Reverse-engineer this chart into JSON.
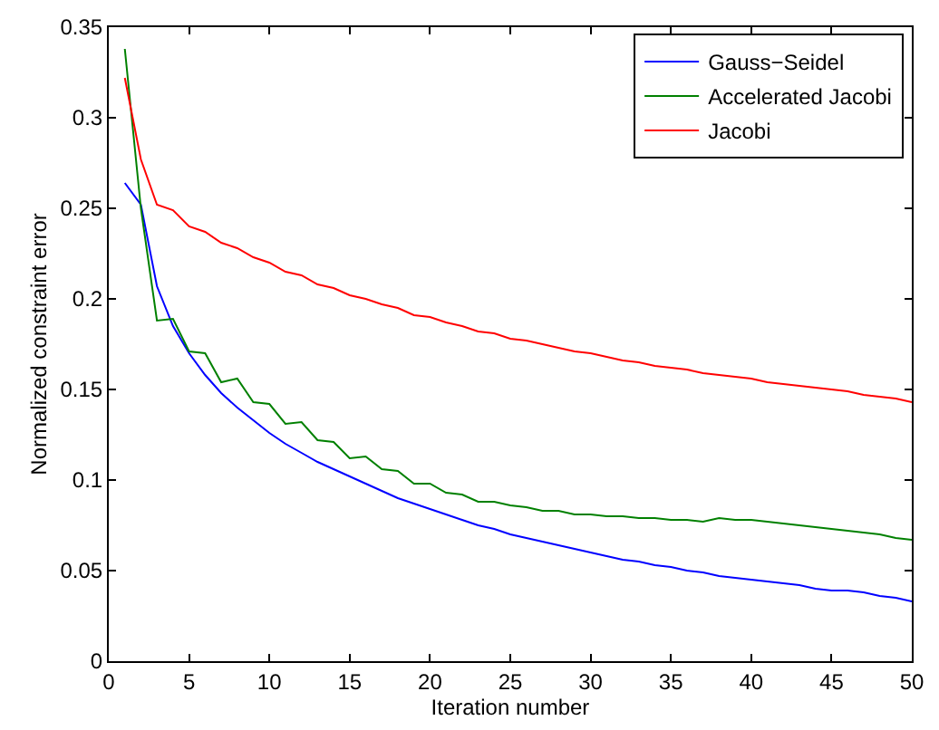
{
  "chart_data": {
    "type": "line",
    "xlabel": "Iteration number",
    "ylabel": "Normalized constraint error",
    "x": [
      1,
      2,
      3,
      4,
      5,
      6,
      7,
      8,
      9,
      10,
      11,
      12,
      13,
      14,
      15,
      16,
      17,
      18,
      19,
      20,
      21,
      22,
      23,
      24,
      25,
      26,
      27,
      28,
      29,
      30,
      31,
      32,
      33,
      34,
      35,
      36,
      37,
      38,
      39,
      40,
      41,
      42,
      43,
      44,
      45,
      46,
      47,
      48,
      49,
      50
    ],
    "series": [
      {
        "name": "Gauss−Seidel",
        "color": "#0000ff",
        "values": [
          0.264,
          0.252,
          0.207,
          0.185,
          0.17,
          0.158,
          0.148,
          0.14,
          0.133,
          0.126,
          0.12,
          0.115,
          0.11,
          0.106,
          0.102,
          0.098,
          0.094,
          0.09,
          0.087,
          0.084,
          0.081,
          0.078,
          0.075,
          0.073,
          0.07,
          0.068,
          0.066,
          0.064,
          0.062,
          0.06,
          0.058,
          0.056,
          0.055,
          0.053,
          0.052,
          0.05,
          0.049,
          0.047,
          0.046,
          0.045,
          0.044,
          0.043,
          0.042,
          0.04,
          0.039,
          0.039,
          0.038,
          0.036,
          0.035,
          0.033
        ]
      },
      {
        "name": "Accelerated Jacobi",
        "color": "#008000",
        "values": [
          0.338,
          0.25,
          0.188,
          0.189,
          0.171,
          0.17,
          0.154,
          0.156,
          0.143,
          0.142,
          0.131,
          0.132,
          0.122,
          0.121,
          0.112,
          0.113,
          0.106,
          0.105,
          0.098,
          0.098,
          0.093,
          0.092,
          0.088,
          0.088,
          0.086,
          0.085,
          0.083,
          0.083,
          0.081,
          0.081,
          0.08,
          0.08,
          0.079,
          0.079,
          0.078,
          0.078,
          0.077,
          0.079,
          0.078,
          0.078,
          0.077,
          0.076,
          0.075,
          0.074,
          0.073,
          0.072,
          0.071,
          0.07,
          0.068,
          0.067
        ]
      },
      {
        "name": "Jacobi",
        "color": "#ff0000",
        "values": [
          0.322,
          0.277,
          0.252,
          0.249,
          0.24,
          0.237,
          0.231,
          0.228,
          0.223,
          0.22,
          0.215,
          0.213,
          0.208,
          0.206,
          0.202,
          0.2,
          0.197,
          0.195,
          0.191,
          0.19,
          0.187,
          0.185,
          0.182,
          0.181,
          0.178,
          0.177,
          0.175,
          0.173,
          0.171,
          0.17,
          0.168,
          0.166,
          0.165,
          0.163,
          0.162,
          0.161,
          0.159,
          0.158,
          0.157,
          0.156,
          0.154,
          0.153,
          0.152,
          0.151,
          0.15,
          0.149,
          0.147,
          0.146,
          0.145,
          0.143
        ]
      }
    ],
    "xlim": [
      0,
      50
    ],
    "xticks": [
      0,
      5,
      10,
      15,
      20,
      25,
      30,
      35,
      40,
      45,
      50
    ],
    "ylim": [
      0,
      0.35
    ],
    "yticks": [
      0,
      0.05,
      0.1,
      0.15,
      0.2,
      0.25,
      0.3,
      0.35
    ],
    "legend": "top right",
    "marker": "none",
    "line_style": "solid"
  }
}
